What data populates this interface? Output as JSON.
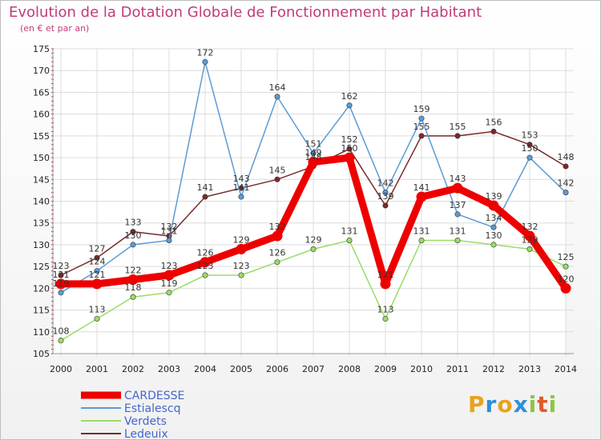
{
  "title": "Evolution de la Dotation Globale de Fonctionnement par Habitant",
  "subtitle": "(en € et par an)",
  "logo": {
    "letters": [
      "P",
      "r",
      "o",
      "x",
      "i",
      "t",
      "i"
    ],
    "colors": [
      "#e8a21d",
      "#2f8fd8",
      "#e8a21d",
      "#2f8fd8",
      "#8cc63f",
      "#e05a2a",
      "#8cc63f"
    ]
  },
  "chart_data": {
    "type": "line",
    "title": "Evolution de la Dotation Globale de Fonctionnement par Habitant",
    "subtitle": "(en € et par an)",
    "x": [
      "2000",
      "2001",
      "2002",
      "2003",
      "2004",
      "2005",
      "2006",
      "2007",
      "2008",
      "2009",
      "2010",
      "2011",
      "2012",
      "2013",
      "2014"
    ],
    "yticks": [
      "105",
      "110",
      "115",
      "120",
      "125",
      "130",
      "135",
      "140",
      "145",
      "150",
      "155",
      "160",
      "165",
      "170",
      "175"
    ],
    "ylim": [
      105,
      175
    ],
    "grid": true,
    "legend_position": "bottom-left",
    "series": [
      {
        "name": "CARDESSE",
        "color": "#ee0000",
        "width": 9,
        "values": [
          121,
          121,
          122,
          123,
          126,
          129,
          132,
          149,
          150,
          121,
          141,
          143,
          139,
          132,
          120
        ]
      },
      {
        "name": "Estialescq",
        "color": "#5b9bd5",
        "width": 1.5,
        "values": [
          119,
          124,
          130,
          131,
          172,
          141,
          164,
          151,
          162,
          142,
          159,
          137,
          134,
          150,
          142
        ]
      },
      {
        "name": "Verdets",
        "color": "#99dd66",
        "width": 1.5,
        "values": [
          108,
          113,
          118,
          119,
          123,
          123,
          126,
          129,
          131,
          113,
          131,
          131,
          130,
          129,
          125
        ]
      },
      {
        "name": "Ledeuix",
        "color": "#7a2a2a",
        "width": 1.5,
        "values": [
          123,
          127,
          133,
          132,
          141,
          143,
          145,
          148,
          152,
          139,
          155,
          155,
          156,
          153,
          148
        ]
      }
    ]
  }
}
